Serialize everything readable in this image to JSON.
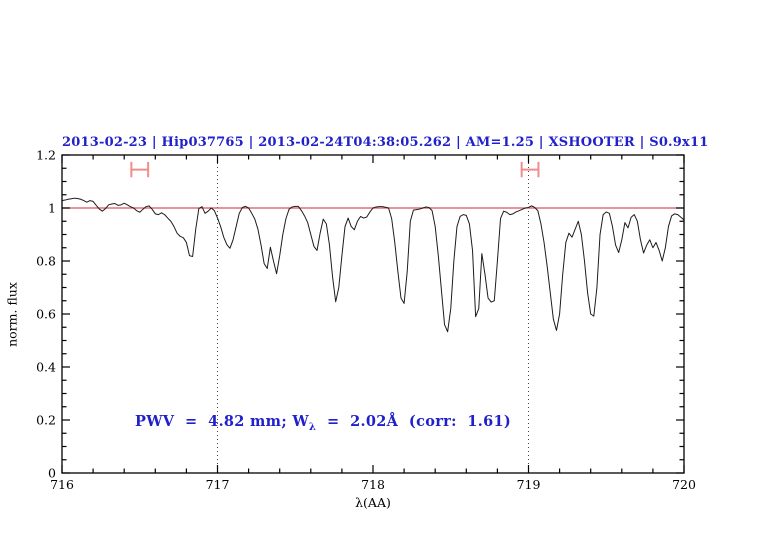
{
  "title": "2013-02-23 | Hip037765 | 2013-02-24T04:38:05.262 | AM=1.25 | XSHOOTER | S0.9x11",
  "annotation": {
    "prefix": "PWV  =  4.82 mm; W",
    "sub": "λ",
    "suffix": "  =  2.02Å  (corr:  1.61)"
  },
  "axes": {
    "xlabel": "λ(AA)",
    "ylabel": "norm. flux",
    "x_ticks": [
      {
        "value": 716,
        "label": "716"
      },
      {
        "value": 717,
        "label": "717"
      },
      {
        "value": 718,
        "label": "718"
      },
      {
        "value": 719,
        "label": "719"
      },
      {
        "value": 720,
        "label": "720"
      }
    ],
    "y_ticks": [
      {
        "value": 0,
        "label": "0"
      },
      {
        "value": 0.2,
        "label": "0.2"
      },
      {
        "value": 0.4,
        "label": "0.4"
      },
      {
        "value": 0.6,
        "label": "0.6"
      },
      {
        "value": 0.8,
        "label": "0.8"
      },
      {
        "value": 1,
        "label": "1"
      },
      {
        "value": 1.2,
        "label": "1.2"
      }
    ]
  },
  "colors": {
    "title_blue": "#2121cc",
    "annotation_blue": "#2121cc",
    "spectrum_black": "#1c1c1c",
    "continuum_red": "#e05050",
    "errorbar_salmon": "#f08c8c",
    "dotted_line": "#444444",
    "axis_black": "#000000"
  },
  "chart_data": {
    "type": "line",
    "title": "2013-02-23 | Hip037765 | 2013-02-24T04:38:05.262 | AM=1.25 | XSHOOTER | S0.9x11",
    "xlabel": "λ(AA)",
    "ylabel": "norm. flux",
    "xlim": [
      716,
      720
    ],
    "ylim": [
      0,
      1.2
    ],
    "x_minor_step": 0.2,
    "y_minor_step": 0.05,
    "grid": false,
    "reference_line_y": 1.0,
    "vertical_dotted_lines_x": [
      717,
      719
    ],
    "range_markers": [
      {
        "x": 716.5,
        "y": 1.145,
        "xerr": 0.054,
        "cap_half_height": 0.029
      },
      {
        "x": 719.01,
        "y": 1.145,
        "xerr": 0.054,
        "cap_half_height": 0.029
      }
    ],
    "series": [
      {
        "name": "normalized telluric spectrum",
        "x_start": 716.0,
        "x_step": 0.02,
        "flux": [
          1.028,
          1.03,
          1.033,
          1.035,
          1.037,
          1.036,
          1.033,
          1.028,
          1.022,
          1.028,
          1.025,
          1.01,
          0.996,
          0.988,
          0.998,
          1.012,
          1.015,
          1.017,
          1.01,
          1.012,
          1.018,
          1.012,
          1.005,
          1.0,
          0.99,
          0.984,
          0.995,
          1.005,
          1.008,
          0.995,
          0.978,
          0.975,
          0.982,
          0.975,
          0.962,
          0.95,
          0.93,
          0.905,
          0.893,
          0.888,
          0.87,
          0.82,
          0.817,
          0.92,
          0.998,
          1.005,
          0.98,
          0.988,
          1.0,
          0.99,
          0.962,
          0.93,
          0.89,
          0.862,
          0.848,
          0.88,
          0.93,
          0.98,
          1.002,
          1.006,
          1.0,
          0.98,
          0.958,
          0.92,
          0.86,
          0.79,
          0.772,
          0.852,
          0.8,
          0.752,
          0.82,
          0.9,
          0.96,
          0.995,
          1.004,
          1.006,
          1.006,
          0.99,
          0.97,
          0.945,
          0.9,
          0.855,
          0.84,
          0.905,
          0.958,
          0.94,
          0.86,
          0.74,
          0.646,
          0.7,
          0.82,
          0.93,
          0.962,
          0.93,
          0.918,
          0.95,
          0.968,
          0.962,
          0.966,
          0.985,
          1.0,
          1.004,
          1.005,
          1.005,
          1.003,
          1.0,
          0.96,
          0.87,
          0.76,
          0.66,
          0.64,
          0.76,
          0.95,
          0.992,
          0.994,
          0.996,
          1.0,
          1.004,
          1.002,
          0.99,
          0.93,
          0.82,
          0.69,
          0.56,
          0.533,
          0.62,
          0.8,
          0.93,
          0.968,
          0.975,
          0.972,
          0.94,
          0.84,
          0.59,
          0.62,
          0.828,
          0.75,
          0.66,
          0.645,
          0.65,
          0.8,
          0.96,
          0.988,
          0.984,
          0.975,
          0.978,
          0.985,
          0.99,
          0.995,
          1.0,
          1.002,
          1.008,
          1.002,
          0.99,
          0.94,
          0.87,
          0.78,
          0.68,
          0.58,
          0.538,
          0.6,
          0.75,
          0.87,
          0.905,
          0.89,
          0.92,
          0.95,
          0.9,
          0.8,
          0.68,
          0.6,
          0.592,
          0.7,
          0.9,
          0.975,
          0.985,
          0.98,
          0.93,
          0.86,
          0.832,
          0.88,
          0.945,
          0.925,
          0.965,
          0.975,
          0.95,
          0.88,
          0.83,
          0.86,
          0.88,
          0.85,
          0.87,
          0.84,
          0.8,
          0.85,
          0.93,
          0.97,
          0.978,
          0.975,
          0.965,
          0.955
        ]
      }
    ]
  }
}
